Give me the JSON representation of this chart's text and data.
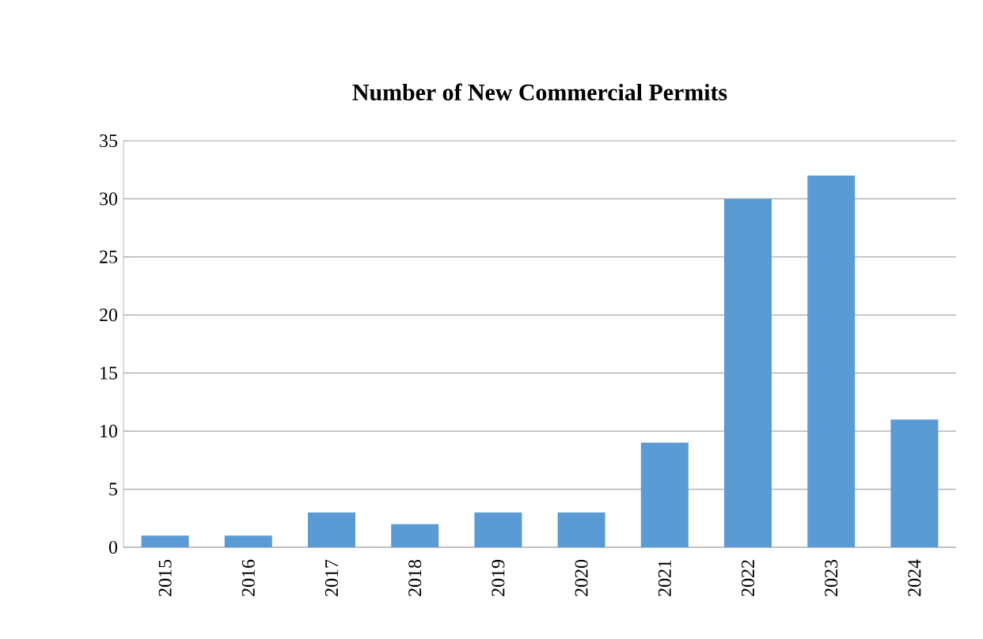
{
  "chart_data": {
    "type": "bar",
    "title": "Number of New Commercial Permits",
    "categories": [
      "2015",
      "2016",
      "2017",
      "2018",
      "2019",
      "2020",
      "2021",
      "2022",
      "2023",
      "2024"
    ],
    "values": [
      1,
      1,
      3,
      2,
      3,
      3,
      9,
      30,
      32,
      11
    ],
    "color": "#5b9bd5",
    "ylim": [
      0,
      35
    ],
    "yticks": [
      0,
      5,
      10,
      15,
      20,
      25,
      30,
      35
    ],
    "grid": "y"
  }
}
